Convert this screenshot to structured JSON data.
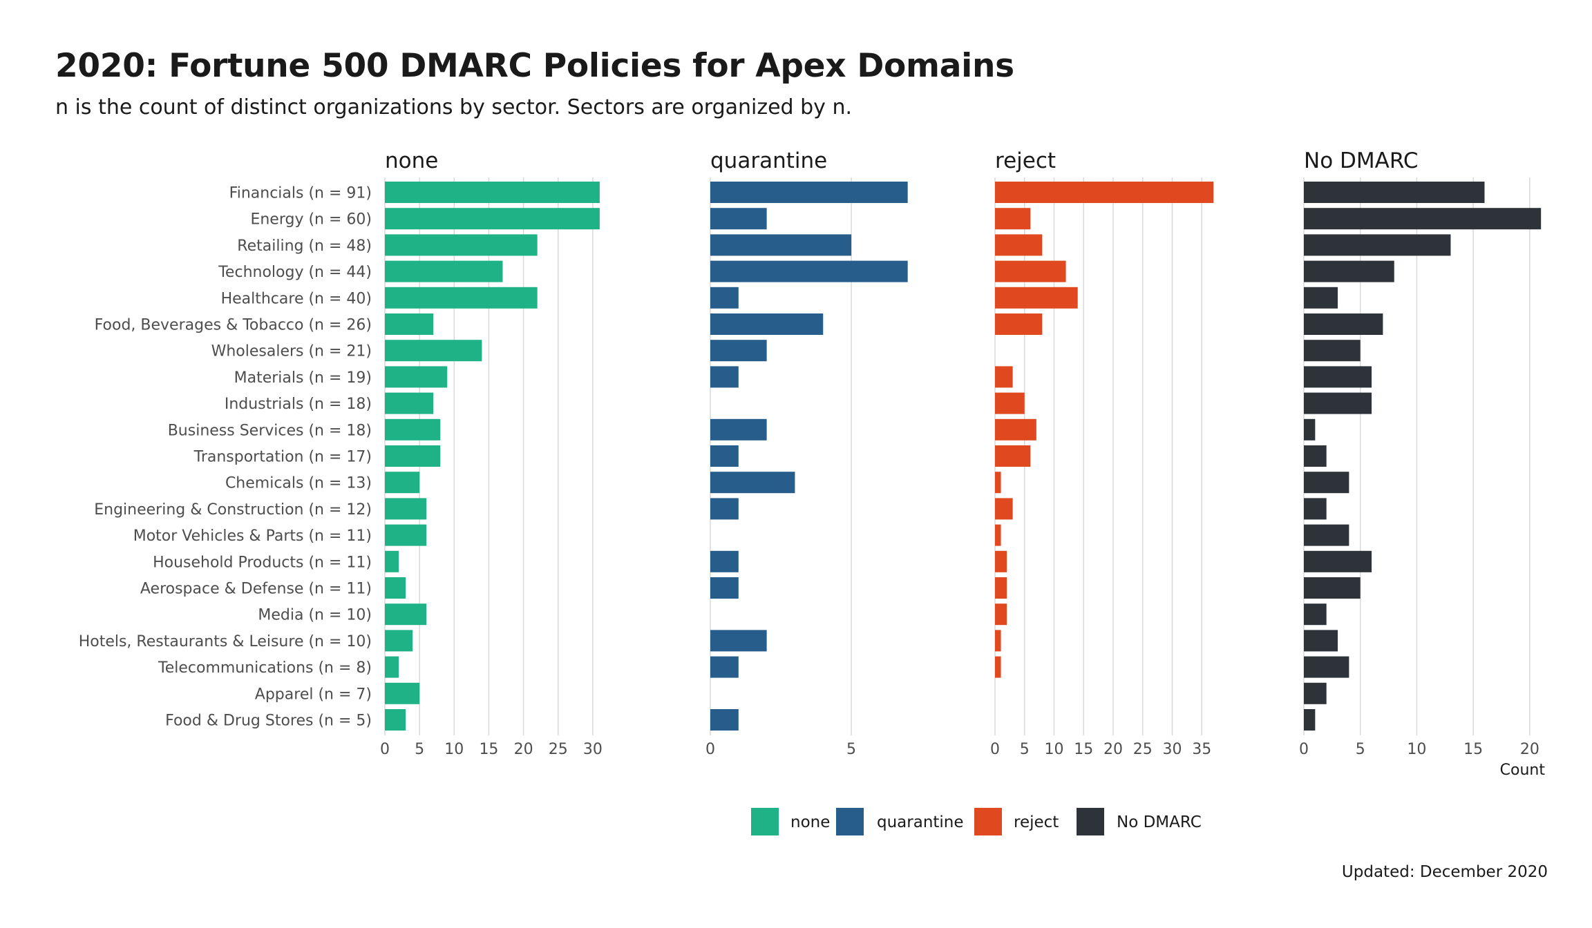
{
  "title": "2020: Fortune 500 DMARC Policies for Apex Domains",
  "subtitle": "n is the count of distinct organizations by sector. Sectors are organized by n.",
  "footer": "Updated: December 2020",
  "chart_data": {
    "type": "bar",
    "orientation": "horizontal",
    "xlabel": "Count",
    "categories": [
      "Financials (n = 91)",
      "Energy (n = 60)",
      "Retailing (n = 48)",
      "Technology (n = 44)",
      "Healthcare (n = 40)",
      "Food, Beverages & Tobacco (n = 26)",
      "Wholesalers (n = 21)",
      "Materials (n = 19)",
      "Industrials (n = 18)",
      "Business Services (n = 18)",
      "Transportation (n = 17)",
      "Chemicals (n = 13)",
      "Engineering & Construction (n = 12)",
      "Motor Vehicles & Parts (n = 11)",
      "Household Products (n = 11)",
      "Aerospace & Defense (n = 11)",
      "Media (n = 10)",
      "Hotels, Restaurants & Leisure (n = 10)",
      "Telecommunications (n = 8)",
      "Apparel (n = 7)",
      "Food & Drug Stores (n = 5)"
    ],
    "series": [
      {
        "name": "none",
        "color": "#20b287",
        "ticks": [
          0,
          5,
          10,
          15,
          20,
          25,
          30
        ],
        "xlim": [
          0,
          34.2
        ],
        "values": [
          31,
          31,
          22,
          17,
          22,
          7,
          14,
          9,
          7,
          8,
          8,
          5,
          6,
          6,
          2,
          3,
          6,
          4,
          2,
          5,
          3
        ]
      },
      {
        "name": "quarantine",
        "color": "#275d8b",
        "ticks": [
          0,
          5
        ],
        "xlim": [
          0,
          7.4
        ],
        "values": [
          7,
          2,
          5,
          7,
          1,
          4,
          2,
          1,
          0,
          2,
          1,
          3,
          1,
          0,
          1,
          1,
          0,
          2,
          1,
          0,
          1
        ]
      },
      {
        "name": "reject",
        "color": "#e04920",
        "ticks": [
          0,
          5,
          10,
          15,
          20,
          25,
          30,
          35
        ],
        "xlim": [
          0,
          38.6
        ],
        "values": [
          37,
          6,
          8,
          12,
          14,
          8,
          0,
          3,
          5,
          7,
          6,
          1,
          3,
          1,
          2,
          2,
          2,
          1,
          1,
          0,
          0
        ]
      },
      {
        "name": "No DMARC",
        "color": "#2d3338",
        "ticks": [
          0,
          5,
          10,
          15,
          20
        ],
        "xlim": [
          0,
          21.6
        ],
        "values": [
          16,
          21,
          13,
          8,
          3,
          7,
          5,
          6,
          6,
          1,
          2,
          4,
          2,
          4,
          6,
          5,
          2,
          3,
          4,
          2,
          1
        ]
      }
    ],
    "legend": {
      "position": "bottom",
      "entries": [
        "none",
        "quarantine",
        "reject",
        "No DMARC"
      ]
    },
    "grid": true
  }
}
